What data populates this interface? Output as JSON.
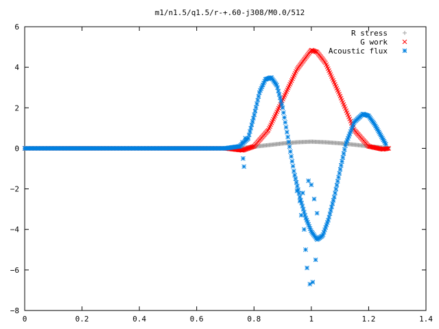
{
  "chart_data": {
    "type": "scatter",
    "title": "m1/n1.5/q1.5/r-+.60-j308/M0.0/512",
    "xlabel": "",
    "ylabel": "",
    "xlim": [
      0,
      1.4
    ],
    "ylim": [
      -8,
      6
    ],
    "x_ticks": [
      "0",
      "0.2",
      "0.4",
      "0.6",
      "0.8",
      "1",
      "1.2",
      "1.4"
    ],
    "y_ticks": [
      "6",
      "4",
      "2",
      "0",
      "−2",
      "−4",
      "−6",
      "−8"
    ],
    "grid": false,
    "legend_position": "top-right",
    "series": [
      {
        "name": "R stress",
        "marker": "plus",
        "color": "#a0a0a0",
        "x": [
          0.0,
          0.1,
          0.2,
          0.3,
          0.4,
          0.5,
          0.6,
          0.7,
          0.76,
          0.8,
          0.85,
          0.9,
          0.95,
          1.0,
          1.05,
          1.1,
          1.15,
          1.2,
          1.25,
          1.27
        ],
        "y": [
          0,
          0,
          0,
          0,
          0,
          0,
          0,
          0,
          0.02,
          0.08,
          0.16,
          0.24,
          0.3,
          0.33,
          0.3,
          0.25,
          0.18,
          0.1,
          0.04,
          0.02
        ]
      },
      {
        "name": "G work",
        "marker": "cross",
        "color": "#ff0000",
        "x": [
          0.0,
          0.1,
          0.2,
          0.3,
          0.4,
          0.5,
          0.6,
          0.7,
          0.76,
          0.8,
          0.85,
          0.9,
          0.95,
          1.0,
          1.02,
          1.05,
          1.1,
          1.15,
          1.2,
          1.25,
          1.27
        ],
        "y": [
          0,
          0,
          0,
          0,
          0,
          0,
          0,
          0,
          -0.1,
          0.1,
          0.9,
          2.4,
          3.9,
          4.85,
          4.75,
          4.2,
          2.6,
          0.9,
          0.1,
          -0.05,
          0.0
        ]
      },
      {
        "name": "Acoustic flux",
        "marker": "star",
        "color": "#0080e0",
        "x": [
          0.0,
          0.1,
          0.2,
          0.3,
          0.4,
          0.5,
          0.6,
          0.7,
          0.75,
          0.78,
          0.8,
          0.82,
          0.84,
          0.86,
          0.88,
          0.9,
          0.92,
          0.94,
          0.96,
          0.98,
          1.0,
          1.02,
          1.04,
          1.06,
          1.08,
          1.1,
          1.12,
          1.15,
          1.18,
          1.2,
          1.22,
          1.24,
          1.26
        ],
        "y": [
          0,
          0,
          0,
          0,
          0,
          0,
          0,
          0,
          0.1,
          0.5,
          1.6,
          2.8,
          3.4,
          3.5,
          3.1,
          2.0,
          0.4,
          -1.2,
          -2.4,
          -3.4,
          -4.1,
          -4.5,
          -4.3,
          -3.5,
          -2.4,
          -1.1,
          0.2,
          1.3,
          1.7,
          1.6,
          1.2,
          0.7,
          0.2
        ],
        "scatter_x": [
          0.76,
          0.762,
          0.765,
          0.77,
          0.95,
          0.96,
          0.965,
          0.97,
          0.975,
          0.98,
          0.985,
          0.99,
          0.995,
          1.0,
          1.005,
          1.01,
          1.015,
          1.02
        ],
        "scatter_y": [
          0.3,
          -0.5,
          -0.9,
          0.5,
          -2.1,
          -2.6,
          -3.3,
          -2.2,
          -4.0,
          -5.0,
          -5.9,
          -1.6,
          -6.7,
          -1.8,
          -6.6,
          -2.5,
          -5.5,
          -3.2
        ]
      }
    ]
  }
}
